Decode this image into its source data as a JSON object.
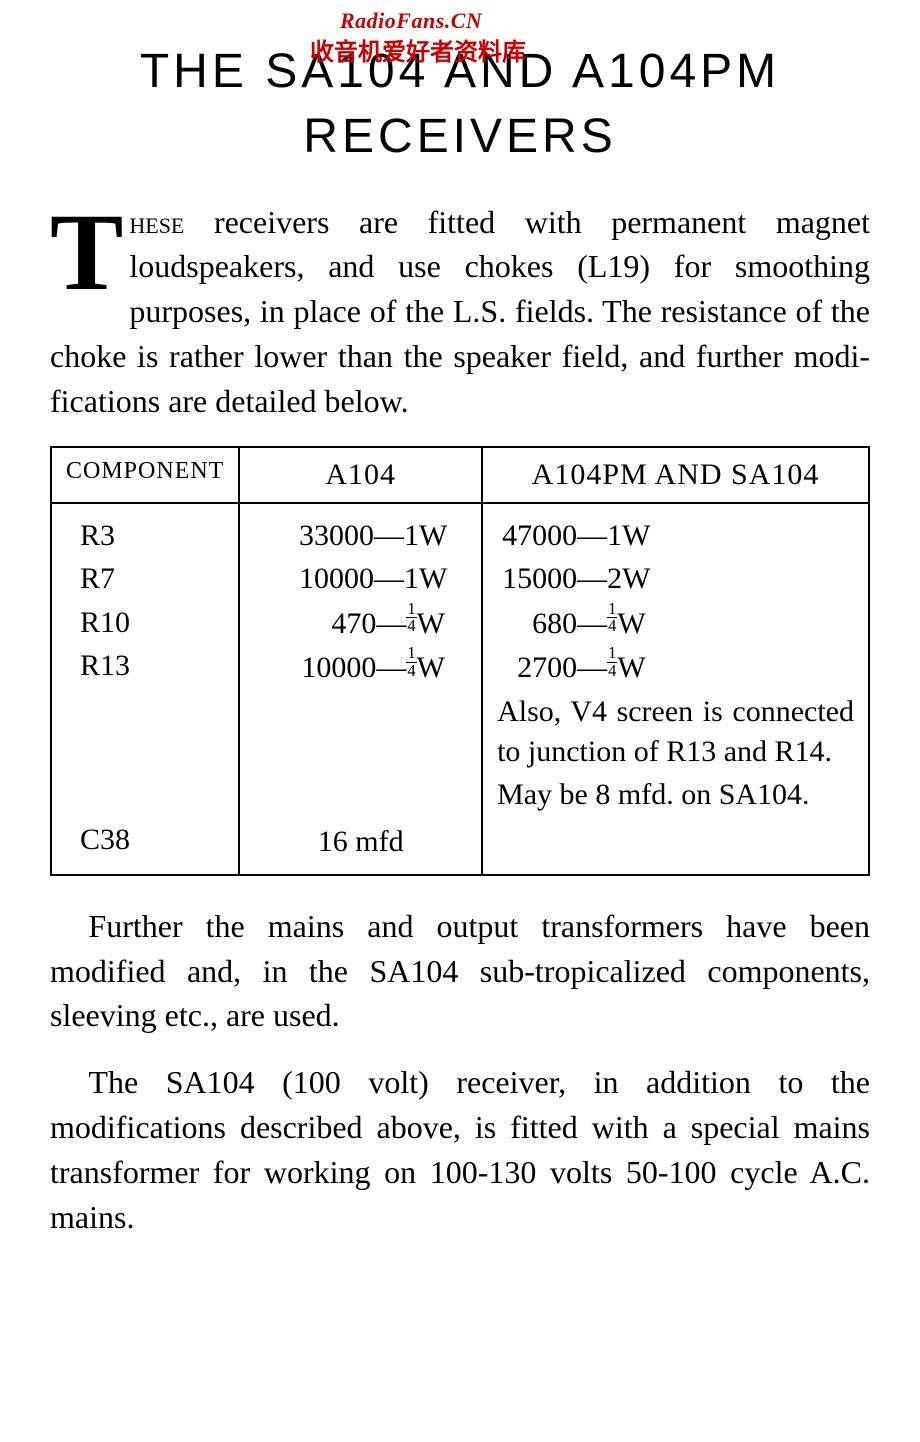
{
  "watermark": {
    "en": "RadioFans.CN",
    "cn": "收音机爱好者资料库"
  },
  "title": "THE SA104 AND A104PM RECEIVERS",
  "para1_dropcap": "T",
  "para1_smallcaps": "hese",
  "para1_rest": " receivers are fitted with permanent magnet loudspeakers, and use chokes (L19) for smoothing purposes, in place of the L.S. fields. The resistance of the choke is rather lower than the speaker field, and further modi­fications are detailed below.",
  "table": {
    "headers": [
      "COMPONENT",
      "A104",
      "A104PM AND SA104"
    ],
    "rows": [
      {
        "comp": "R3",
        "a104_val": "33000",
        "a104_unit": "1W",
        "pm_val": "47000",
        "pm_unit": "1W"
      },
      {
        "comp": "R7",
        "a104_val": "10000",
        "a104_unit": "1W",
        "pm_val": "15000",
        "pm_unit": "2W"
      },
      {
        "comp": "R10",
        "a104_val": "470",
        "a104_unit": "FRAC14",
        "pm_val": "680",
        "pm_unit": "FRAC14"
      },
      {
        "comp": "R13",
        "a104_val": "10000",
        "a104_unit": "FRAC14",
        "pm_val": "2700",
        "pm_unit": "FRAC14"
      }
    ],
    "note_pm": "Also, V4 screen is con­nected to junction of R13 and R14.",
    "c38": {
      "comp": "C38",
      "a104": "16 mfd",
      "pm": "May be 8 mfd. on SA104."
    }
  },
  "para2": "Further the mains and output transformers have been modified and, in the SA104 sub-tropicalized components, sleeving etc., are used.",
  "para3": "The SA104 (100 volt) receiver, in addition to the modifications described above, is fitted with a special mains transformer for working on 100-130 volts 50-100 cycle A.C. mains."
}
